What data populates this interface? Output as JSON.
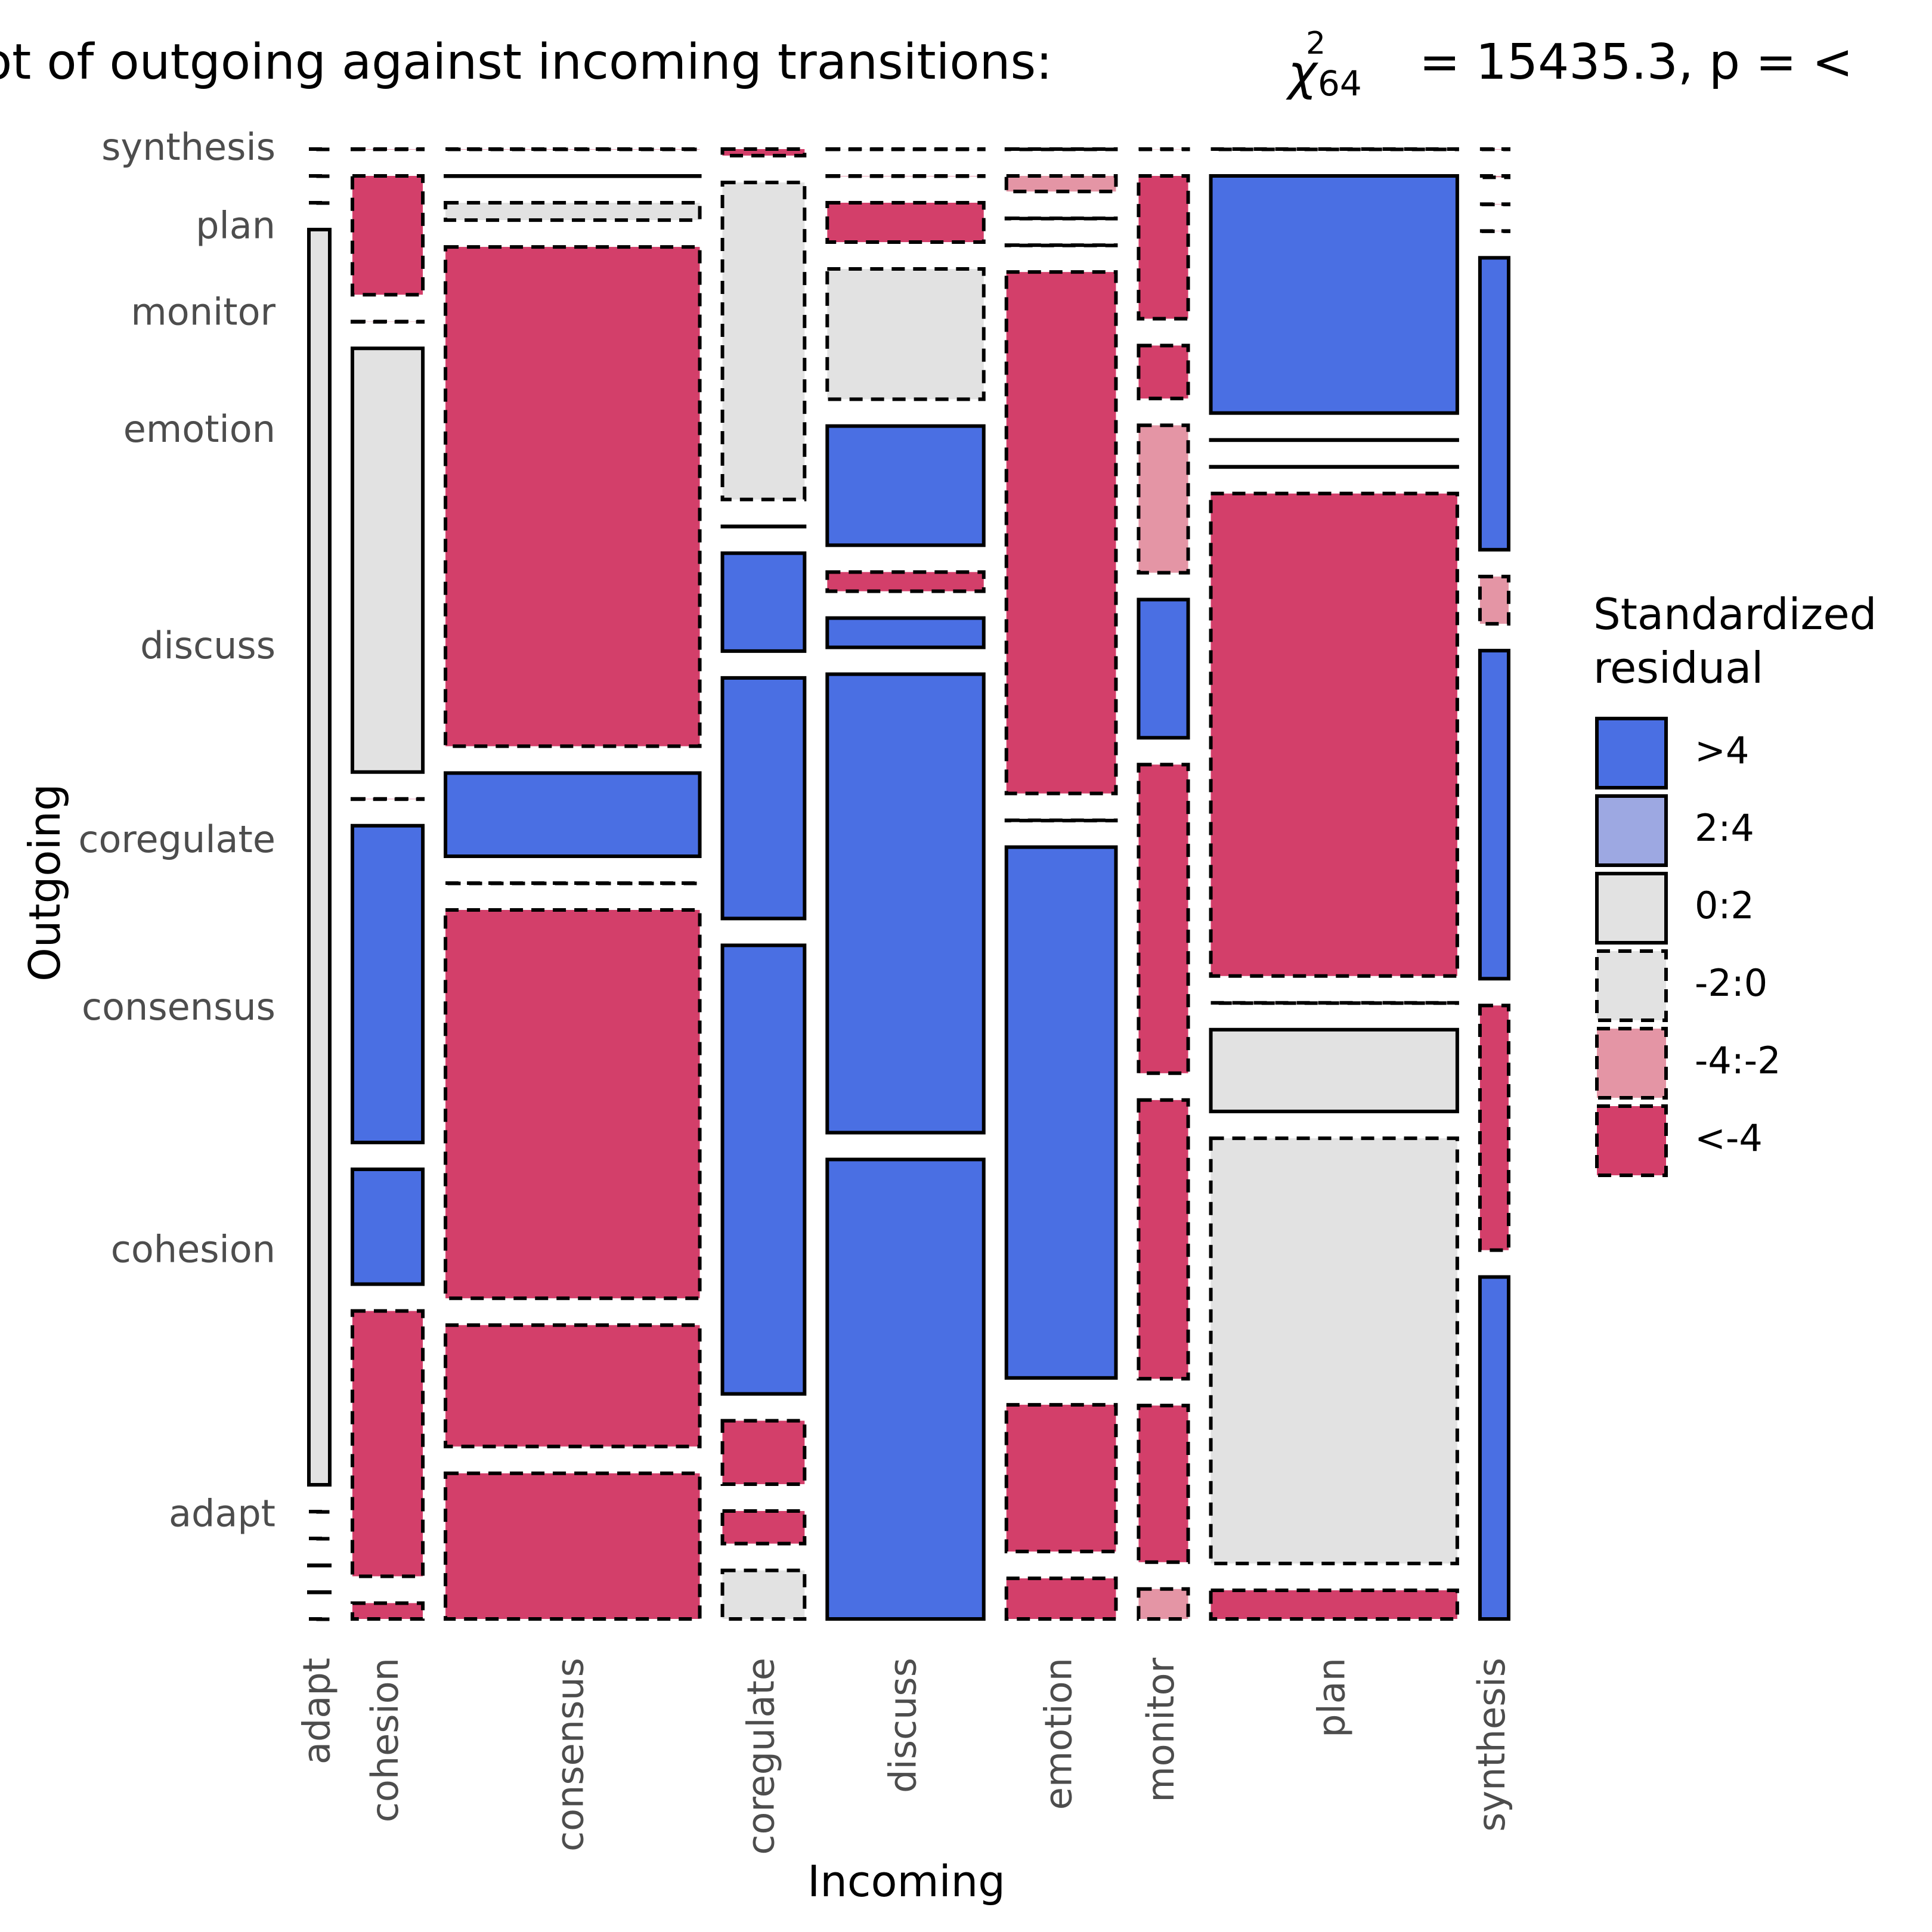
{
  "chart_data": {
    "type": "mosaic",
    "title_prefix": "ot of outgoing against incoming transitions:",
    "title_stat_symbol": "χ",
    "title_stat_superscript": "2",
    "title_stat_subscript": "64",
    "title_suffix": "=  15435.3, p = <",
    "xlabel": "Incoming",
    "ylabel": "Outgoing",
    "x_categories": [
      "adapt",
      "cohesion",
      "consensus",
      "coregulate",
      "discuss",
      "emotion",
      "monitor",
      "plan",
      "synthesis"
    ],
    "y_categories": [
      "adapt",
      "cohesion",
      "consensus",
      "coregulate",
      "discuss",
      "emotion",
      "monitor",
      "plan",
      "synthesis"
    ],
    "x_column_widths": [
      0.016,
      0.054,
      0.195,
      0.063,
      0.12,
      0.084,
      0.038,
      0.189,
      0.022
    ],
    "proportions": [
      [
        0.0,
        0.004,
        0.042,
        0.052,
        0.455,
        0.013,
        0.013,
        0.007,
        0.246
      ],
      [
        0.0,
        0.067,
        0.035,
        0.035,
        0.454,
        0.047,
        0.068,
        0.104,
        0.176
      ],
      [
        0.0,
        0.029,
        0.112,
        0.068,
        0.029,
        0.17,
        0.121,
        0.02,
        0.236
      ],
      [
        0.0,
        0.08,
        0.0,
        0.481,
        0.019,
        0.0,
        0.134,
        0.0,
        0.034
      ],
      [
        0.0,
        0.0,
        0.024,
        0.258,
        0.118,
        0.167,
        0.06,
        0.118,
        0.21
      ],
      [
        0.029,
        0.107,
        0.144,
        0.105,
        0.129,
        0.0,
        0.064,
        0.0,
        0.0
      ],
      [
        0.0,
        0.0,
        0.005,
        0.0,
        0.039,
        0.0,
        0.023,
        0.0,
        0.0
      ],
      [
        0.0,
        0.03,
        0.0,
        0.34,
        0.0,
        0.005,
        0.062,
        0.058,
        0.001
      ],
      [
        0.0,
        0.0,
        0.0,
        0.007,
        0.0,
        0.0,
        0.0,
        0.0,
        0.0
      ]
    ],
    "residual_class": [
      [
        "-2:0",
        "<-4",
        "<-4",
        "-2:0",
        ">4",
        "<-4",
        "-4:-2",
        "<-4",
        ">4"
      ],
      [
        ">4",
        "<-4",
        "<-4",
        "<-4",
        ">4",
        "<-4",
        "<-4",
        "-2:0",
        "<-4"
      ],
      [
        ">4",
        ">4",
        "<-4",
        "<-4",
        ">4",
        ">4",
        "<-4",
        "0:2",
        ">4"
      ],
      [
        "<-4",
        ">4",
        "-2:0",
        ">4",
        "<-4",
        "<-4",
        "<-4",
        "<-4",
        "-4:-2"
      ],
      [
        "<-4",
        "<-4",
        ">4",
        ">4",
        ">4",
        "<-4",
        ">4",
        "<-4",
        ">4"
      ],
      [
        "0:2",
        "0:2",
        "<-4",
        ">4",
        "-2:0",
        "<-4",
        "-4:-2",
        ">4",
        "-4:-2"
      ],
      [
        "-2:0",
        "-4:-2",
        "-2:0",
        ">4",
        "<-4",
        "-4:-2",
        "<-4",
        ">4",
        "<-4"
      ],
      [
        "-2:0",
        "<-4",
        ">4",
        "-2:0",
        "<-4",
        "-4:-2",
        "<-4",
        ">4",
        "-4:-2"
      ],
      [
        "-2:0",
        "<-4",
        "<-4",
        "<-4",
        "-2:0",
        "<-4",
        "-4:-2",
        "<-4",
        "<-4"
      ]
    ],
    "legend": {
      "title": [
        "Standardized",
        "residual"
      ],
      "position": "right",
      "entries": [
        {
          "label": ">4",
          "color": "#4a6fe3",
          "dashed": false
        },
        {
          "label": "2:4",
          "color": "#9da8e2",
          "dashed": false
        },
        {
          "label": "0:2",
          "color": "#e2e2e2",
          "dashed": false
        },
        {
          "label": "-2:0",
          "color": "#e2e2e2",
          "dashed": true
        },
        {
          "label": "-4:-2",
          "color": "#e495a5",
          "dashed": true
        },
        {
          "label": "<-4",
          "color": "#d33f6a",
          "dashed": true
        }
      ]
    },
    "grid": false
  }
}
